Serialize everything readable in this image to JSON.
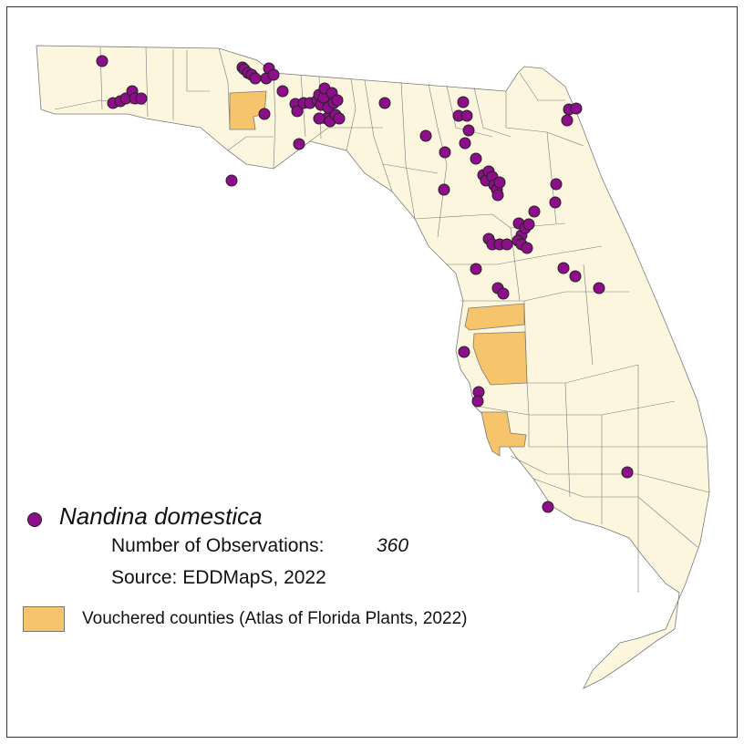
{
  "colors": {
    "land": "#fdf6df",
    "county_line": "#7a7a7a",
    "vouchered": "#f6c46a",
    "observation": "#8e0d8a",
    "observation_outline": "#222222"
  },
  "legend": {
    "species": "Nandina domestica",
    "observations_label": "Number of Observations:",
    "observations_count": "360",
    "source": "Source: EDDMapS, 2022",
    "vouchered_label": "Vouchered counties (Atlas of Florida Plants, 2022)"
  }
}
